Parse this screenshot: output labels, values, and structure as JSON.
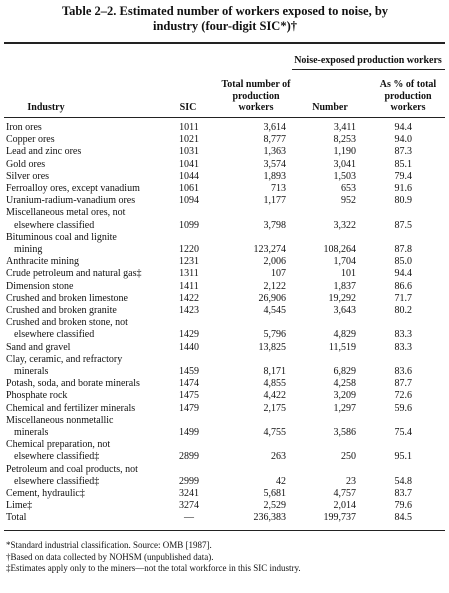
{
  "title": "Table 2–2. Estimated number of workers exposed to noise, by industry (four-digit SIC*)†",
  "table": {
    "group_header": "Noise-exposed production workers",
    "columns": [
      "Industry",
      "SIC",
      "Total number of production workers",
      "Number",
      "As % of total production workers"
    ],
    "rows": [
      {
        "industry": [
          "Iron ores"
        ],
        "sic": "1011",
        "total": "3,614",
        "number": "3,411",
        "percent": "94.4"
      },
      {
        "industry": [
          "Copper ores"
        ],
        "sic": "1021",
        "total": "8,777",
        "number": "8,253",
        "percent": "94.0"
      },
      {
        "industry": [
          "Lead and zinc ores"
        ],
        "sic": "1031",
        "total": "1,363",
        "number": "1,190",
        "percent": "87.3"
      },
      {
        "industry": [
          "Gold ores"
        ],
        "sic": "1041",
        "total": "3,574",
        "number": "3,041",
        "percent": "85.1"
      },
      {
        "industry": [
          "Silver ores"
        ],
        "sic": "1044",
        "total": "1,893",
        "number": "1,503",
        "percent": "79.4"
      },
      {
        "industry": [
          "Ferroalloy ores, except vanadium"
        ],
        "sic": "1061",
        "total": "713",
        "number": "653",
        "percent": "91.6"
      },
      {
        "industry": [
          "Uranium-radium-vanadium ores"
        ],
        "sic": "1094",
        "total": "1,177",
        "number": "952",
        "percent": "80.9"
      },
      {
        "industry": [
          "Miscellaneous metal ores, not",
          "elsewhere classified"
        ],
        "sic": "1099",
        "total": "3,798",
        "number": "3,322",
        "percent": "87.5"
      },
      {
        "industry": [
          "Bituminous coal and lignite",
          "mining"
        ],
        "sic": "1220",
        "total": "123,274",
        "number": "108,264",
        "percent": "87.8"
      },
      {
        "industry": [
          "Anthracite mining"
        ],
        "sic": "1231",
        "total": "2,006",
        "number": "1,704",
        "percent": "85.0"
      },
      {
        "industry": [
          "Crude petroleum and natural gas‡"
        ],
        "sic": "1311",
        "total": "107",
        "number": "101",
        "percent": "94.4"
      },
      {
        "industry": [
          "Dimension stone"
        ],
        "sic": "1411",
        "total": "2,122",
        "number": "1,837",
        "percent": "86.6"
      },
      {
        "industry": [
          "Crushed and broken limestone"
        ],
        "sic": "1422",
        "total": "26,906",
        "number": "19,292",
        "percent": "71.7"
      },
      {
        "industry": [
          "Crushed and broken granite"
        ],
        "sic": "1423",
        "total": "4,545",
        "number": "3,643",
        "percent": "80.2"
      },
      {
        "industry": [
          "Crushed and broken stone, not",
          "elsewhere classified"
        ],
        "sic": "1429",
        "total": "5,796",
        "number": "4,829",
        "percent": "83.3"
      },
      {
        "industry": [
          "Sand and gravel"
        ],
        "sic": "1440",
        "total": "13,825",
        "number": "11,519",
        "percent": "83.3"
      },
      {
        "industry": [
          "Clay, ceramic, and refractory",
          "minerals"
        ],
        "sic": "1459",
        "total": "8,171",
        "number": "6,829",
        "percent": "83.6"
      },
      {
        "industry": [
          "Potash, soda, and borate minerals"
        ],
        "sic": "1474",
        "total": "4,855",
        "number": "4,258",
        "percent": "87.7"
      },
      {
        "industry": [
          "Phosphate rock"
        ],
        "sic": "1475",
        "total": "4,422",
        "number": "3,209",
        "percent": "72.6"
      },
      {
        "industry": [
          "Chemical and fertilizer minerals"
        ],
        "sic": "1479",
        "total": "2,175",
        "number": "1,297",
        "percent": "59.6"
      },
      {
        "industry": [
          "Miscellaneous nonmetallic",
          "minerals"
        ],
        "sic": "1499",
        "total": "4,755",
        "number": "3,586",
        "percent": "75.4"
      },
      {
        "industry": [
          "Chemical preparation, not",
          "elsewhere classified‡"
        ],
        "sic": "2899",
        "total": "263",
        "number": "250",
        "percent": "95.1"
      },
      {
        "industry": [
          "Petroleum and coal products, not",
          "elsewhere classified‡"
        ],
        "sic": "2999",
        "total": "42",
        "number": "23",
        "percent": "54.8"
      },
      {
        "industry": [
          "Cement, hydraulic‡"
        ],
        "sic": "3241",
        "total": "5,681",
        "number": "4,757",
        "percent": "83.7"
      },
      {
        "industry": [
          "Lime‡"
        ],
        "sic": "3274",
        "total": "2,529",
        "number": "2,014",
        "percent": "79.6"
      },
      {
        "industry": [
          "Total"
        ],
        "sic": "—",
        "total": "236,383",
        "number": "199,737",
        "percent": "84.5"
      }
    ]
  },
  "footnotes": [
    "*Standard industrial classification. Source: OMB [1987].",
    "†Based on data collected by NOHSM (unpublished data).",
    "‡Estimates apply only to the miners—not the total workforce in this SIC industry."
  ]
}
